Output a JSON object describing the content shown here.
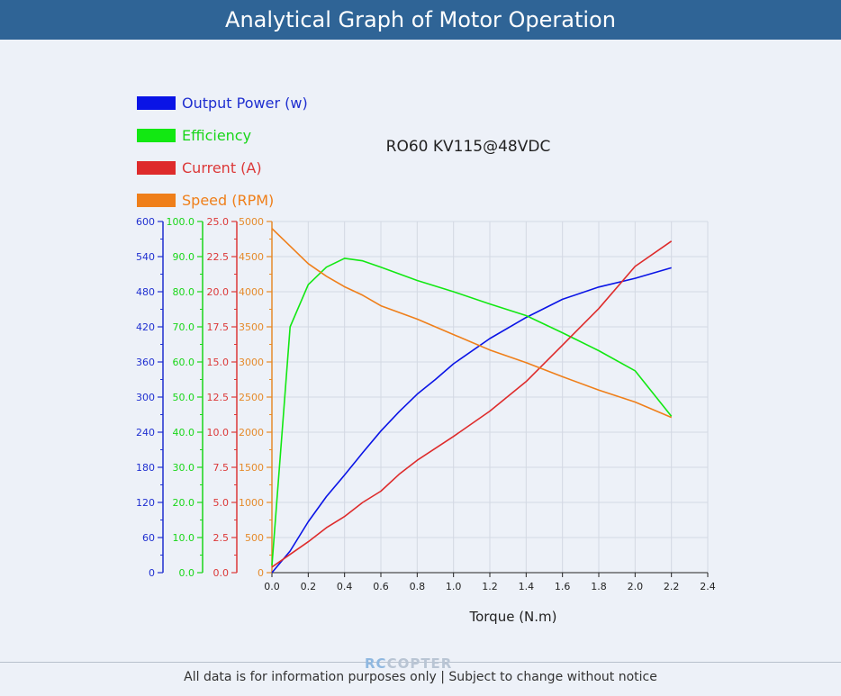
{
  "header": {
    "title": "Analytical Graph of Motor Operation"
  },
  "chart_data": {
    "type": "line",
    "title": "RO60 KV115@48VDC",
    "xlabel": "Torque (N.m)",
    "x_ticks": [
      "0.0",
      "0.2",
      "0.4",
      "0.6",
      "0.8",
      "1.0",
      "1.2",
      "1.4",
      "1.6",
      "1.8",
      "2.0",
      "2.2",
      "2.4"
    ],
    "xlim": [
      0,
      2.4
    ],
    "grid": true,
    "legend_position": "top-left",
    "axes": [
      {
        "id": "power",
        "color": "#1f2fd0",
        "ylim": [
          0,
          600
        ],
        "ticks": [
          "0",
          "60",
          "120",
          "180",
          "240",
          "300",
          "360",
          "420",
          "480",
          "540",
          "600"
        ]
      },
      {
        "id": "efficiency",
        "color": "#19d619",
        "ylim": [
          0,
          100
        ],
        "ticks": [
          "0.0",
          "10.0",
          "20.0",
          "30.0",
          "40.0",
          "50.0",
          "60.0",
          "70.0",
          "80.0",
          "90.0",
          "100.0"
        ]
      },
      {
        "id": "current",
        "color": "#dc3838",
        "ylim": [
          0,
          25
        ],
        "ticks": [
          "0.0",
          "2.5",
          "5.0",
          "7.5",
          "10.0",
          "12.5",
          "15.0",
          "17.5",
          "20.0",
          "22.5",
          "25.0"
        ]
      },
      {
        "id": "speed",
        "color": "#e58a2a",
        "ylim": [
          0,
          5000
        ],
        "ticks": [
          "0",
          "500",
          "1000",
          "1500",
          "2000",
          "2500",
          "3000",
          "3500",
          "4000",
          "4500",
          "5000"
        ]
      }
    ],
    "series": [
      {
        "name": "Output Power (w)",
        "axis": "power",
        "color": "#0a14e6",
        "x": [
          0,
          0.1,
          0.2,
          0.3,
          0.4,
          0.5,
          0.6,
          0.7,
          0.8,
          0.9,
          1.0,
          1.2,
          1.4,
          1.6,
          1.8,
          2.0,
          2.2
        ],
        "y": [
          0,
          37,
          87,
          130,
          167,
          205,
          242,
          275,
          305,
          330,
          357,
          400,
          436,
          467,
          488,
          503,
          521
        ]
      },
      {
        "name": "Efficiency",
        "axis": "efficiency",
        "color": "#12e812",
        "x": [
          0,
          0.1,
          0.2,
          0.3,
          0.4,
          0.5,
          0.6,
          0.8,
          1.0,
          1.2,
          1.4,
          1.6,
          1.8,
          2.0,
          2.2
        ],
        "y": [
          2,
          70,
          82,
          87,
          89.5,
          88.8,
          87,
          83.2,
          80,
          76.5,
          73.2,
          68.3,
          63.2,
          57.5,
          44.5
        ]
      },
      {
        "name": "Current (A)",
        "axis": "current",
        "color": "#de2b2b",
        "x": [
          0,
          0.1,
          0.2,
          0.3,
          0.4,
          0.5,
          0.6,
          0.7,
          0.8,
          1.0,
          1.2,
          1.4,
          1.6,
          1.8,
          2.0,
          2.2
        ],
        "y": [
          0.4,
          1.3,
          2.2,
          3.2,
          4.0,
          5.0,
          5.8,
          7.0,
          8.0,
          9.7,
          11.5,
          13.6,
          16.2,
          18.8,
          21.8,
          23.6
        ]
      },
      {
        "name": "Speed (RPM)",
        "axis": "speed",
        "color": "#ef7f1a",
        "x": [
          0,
          0.1,
          0.2,
          0.3,
          0.4,
          0.5,
          0.6,
          0.8,
          1.0,
          1.2,
          1.4,
          1.6,
          1.8,
          2.0,
          2.2
        ],
        "y": [
          4900,
          4650,
          4400,
          4220,
          4070,
          3950,
          3800,
          3610,
          3390,
          3170,
          2990,
          2790,
          2600,
          2430,
          2210
        ]
      }
    ]
  },
  "watermark": {
    "rc": "RC",
    "copter": "COPTER"
  },
  "footer": {
    "note": "All data is for information purposes only | Subject to change without notice"
  }
}
